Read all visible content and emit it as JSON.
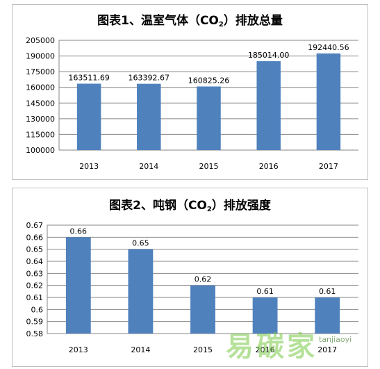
{
  "chart_data": [
    {
      "type": "bar",
      "title": "图表1、温室气体（CO",
      "title_sub": "2",
      "title_suffix": "）排放总量",
      "categories": [
        "2013",
        "2014",
        "2015",
        "2016",
        "2017"
      ],
      "values": [
        163511.69,
        163392.67,
        160825.26,
        185014.0,
        192440.56
      ],
      "data_labels": [
        "163511.69",
        "163392.67",
        "160825.26",
        "185014.00",
        "192440.56"
      ],
      "ylim": [
        100000,
        205000
      ],
      "yticks": [
        100000,
        115000,
        130000,
        145000,
        160000,
        175000,
        190000,
        205000
      ],
      "grid": true,
      "bar_color": "#4f81bd"
    },
    {
      "type": "bar",
      "title": "图表2、吨钢（CO",
      "title_sub": "2",
      "title_suffix": "）排放强度",
      "categories": [
        "2013",
        "2014",
        "2015",
        "2016",
        "2017"
      ],
      "values": [
        0.66,
        0.65,
        0.62,
        0.61,
        0.61
      ],
      "data_labels": [
        "0.66",
        "0.65",
        "0.62",
        "0.61",
        "0.61"
      ],
      "ylim": [
        0.58,
        0.67
      ],
      "yticks": [
        0.58,
        0.59,
        0.6,
        0.61,
        0.62,
        0.63,
        0.64,
        0.65,
        0.66,
        0.67
      ],
      "ytick_labels": [
        "0.58",
        "0.59",
        "0.6",
        "0.61",
        "0.62",
        "0.63",
        "0.64",
        "0.65",
        "0.66",
        "0.67"
      ],
      "grid": true,
      "bar_color": "#4f81bd"
    }
  ],
  "watermark": {
    "text": "易碳家",
    "site": "tanjiaoyi"
  }
}
